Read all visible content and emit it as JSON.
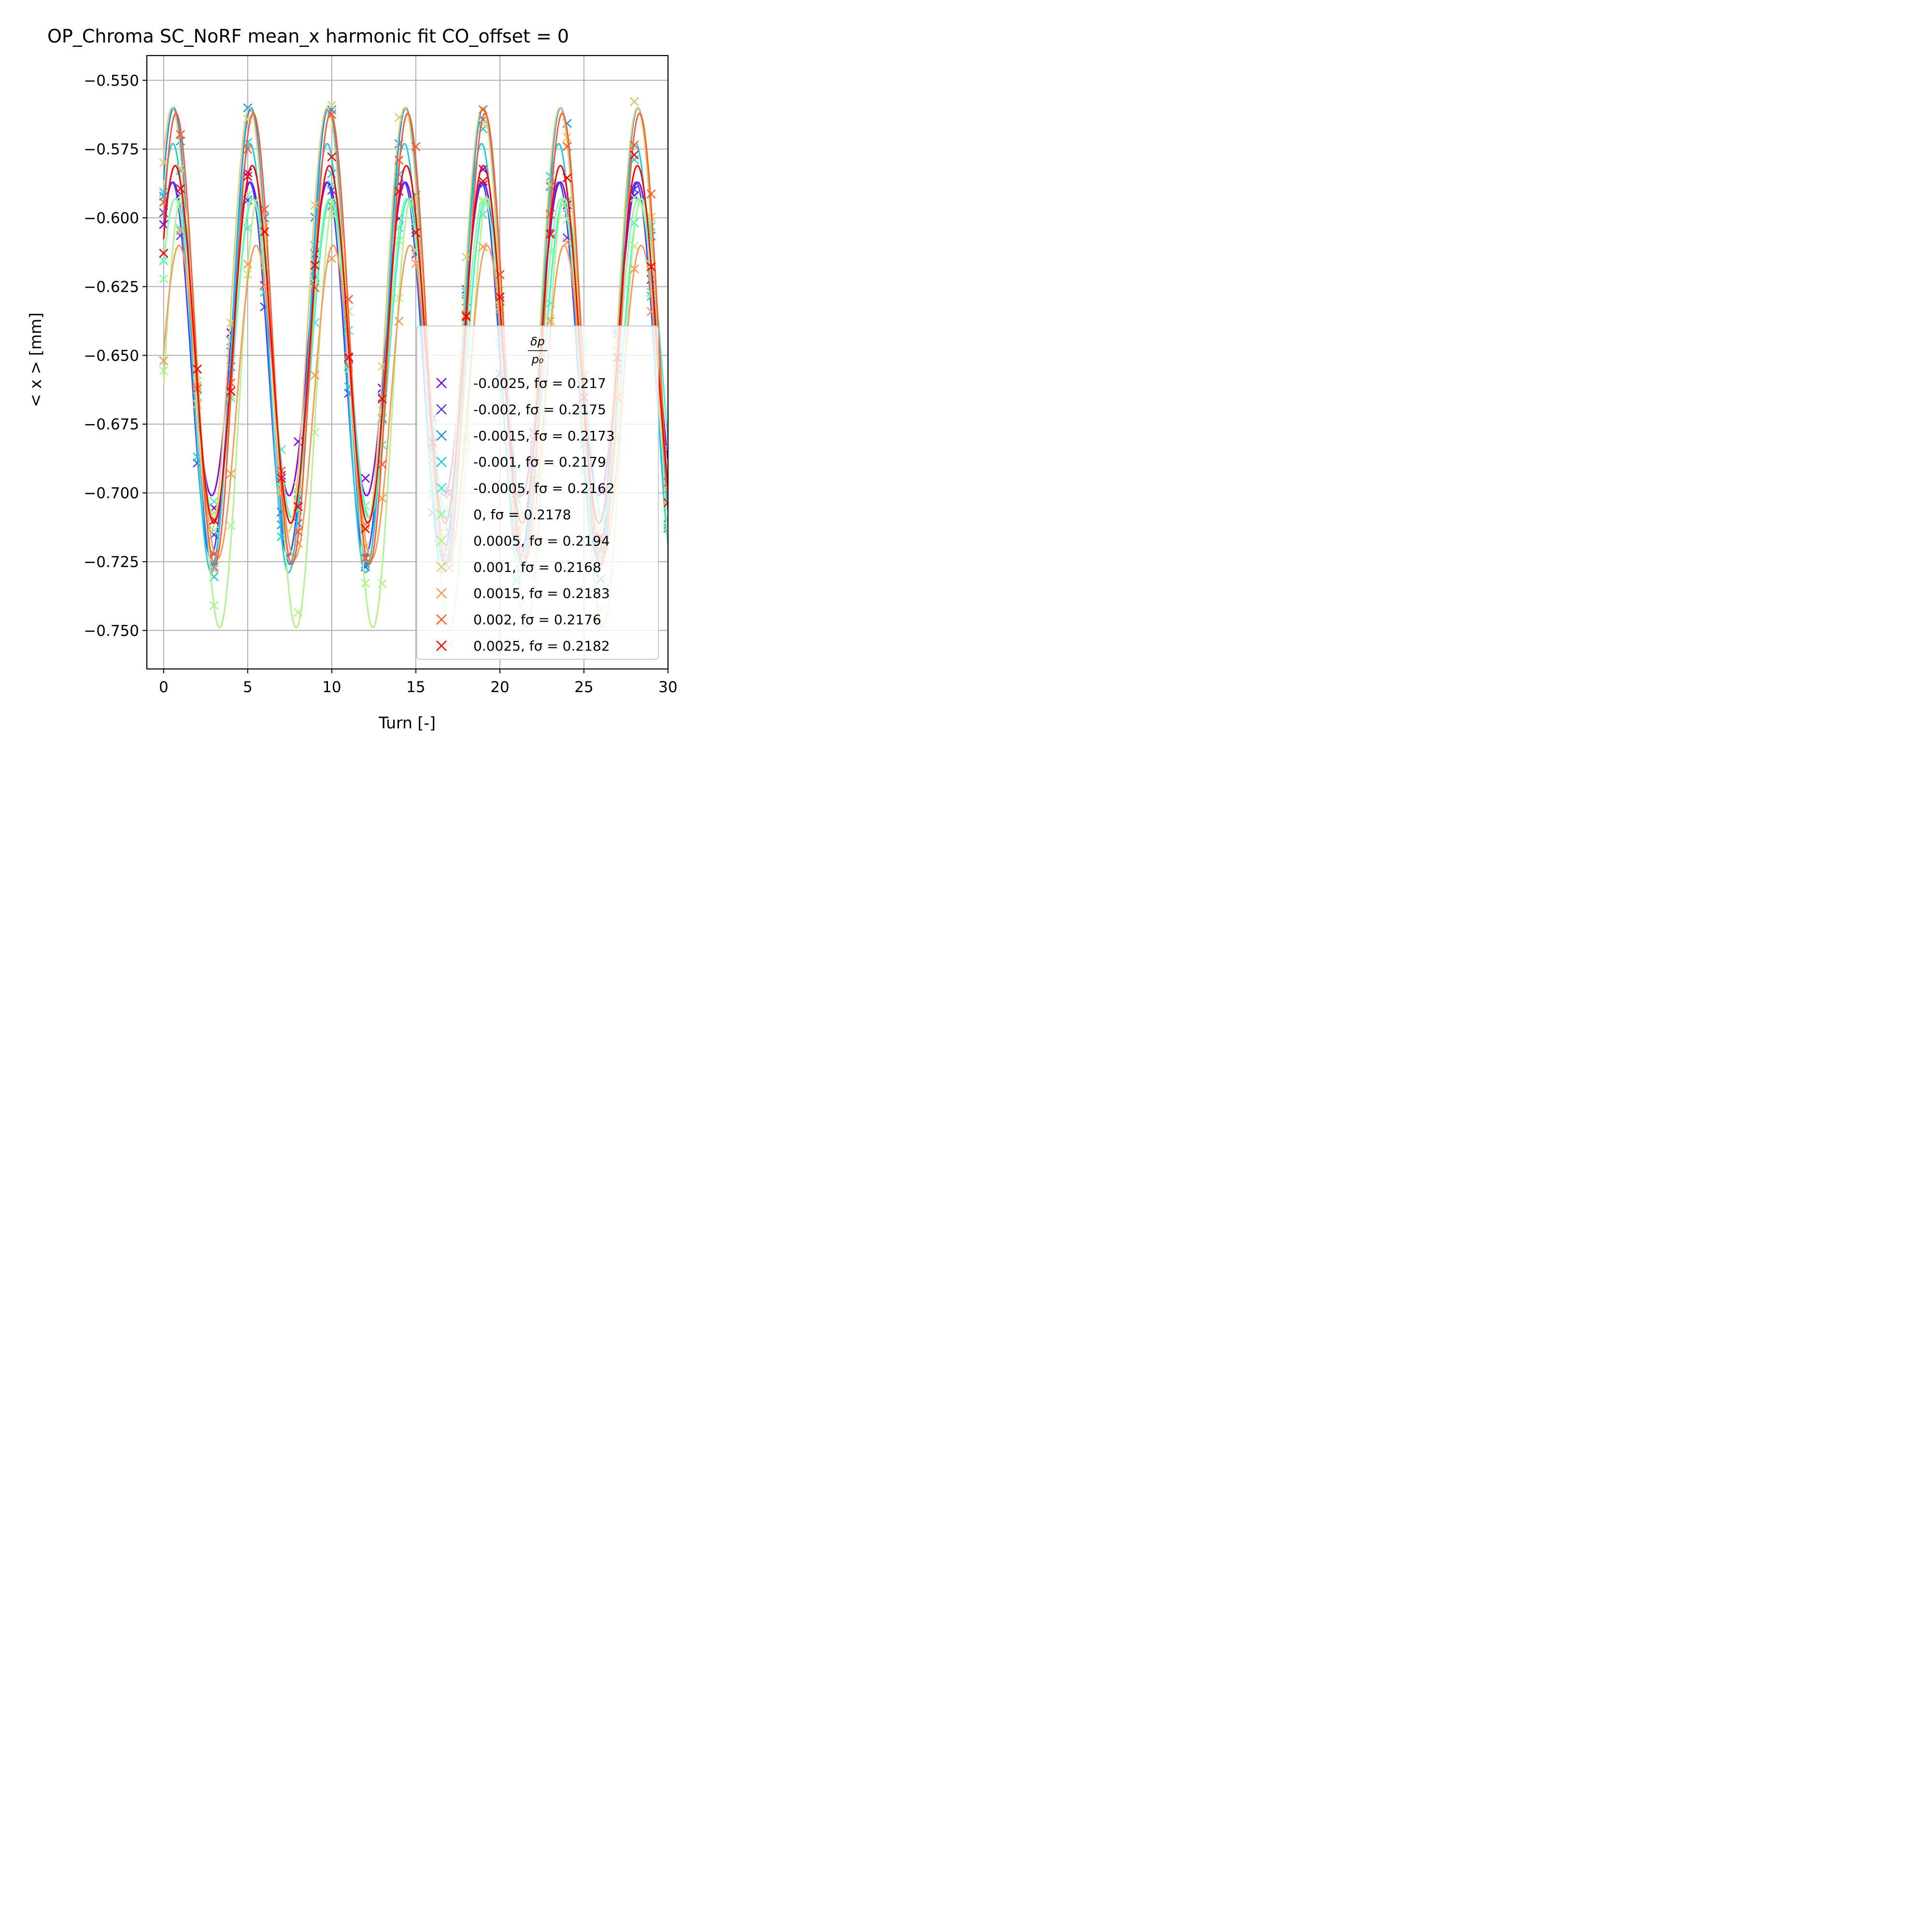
{
  "chart_data": {
    "type": "scatter",
    "title": "OP_Chroma SC_NoRF mean_x harmonic fit CO_offset = 0",
    "xlabel": "Turn [-]",
    "ylabel": "< x >  [mm]",
    "xlim": [
      -1,
      30
    ],
    "ylim": [
      -0.764,
      -0.541
    ],
    "xticks": [
      "0",
      "5",
      "10",
      "15",
      "20",
      "25",
      "30"
    ],
    "yticks": [
      "−0.550",
      "−0.575",
      "−0.600",
      "−0.625",
      "−0.650",
      "−0.675",
      "−0.700",
      "−0.725",
      "−0.750"
    ],
    "grid": true,
    "legend": {
      "placement": "lower-right",
      "title_num": "δp",
      "title_den": "p₀"
    },
    "series": [
      {
        "dp": "-0.0025",
        "label": "-0.0025, fσ = 0.217",
        "f": 0.217,
        "color": "#8000ff",
        "mean": -0.644,
        "amp": 0.057,
        "phase": 0.13
      },
      {
        "dp": "-0.002",
        "label": "-0.002, fσ = 0.2175",
        "f": 0.2175,
        "color": "#4842f8",
        "mean": -0.655,
        "amp": 0.068,
        "phase": 0.14
      },
      {
        "dp": "-0.0015",
        "label": "-0.0015, fσ = 0.2173",
        "f": 0.2173,
        "color": "#1996f3",
        "mean": -0.643,
        "amp": 0.083,
        "phase": 0.12
      },
      {
        "dp": "-0.001",
        "label": "-0.001, fσ = 0.2179",
        "f": 0.2179,
        "color": "#1acfe3",
        "mean": -0.651,
        "amp": 0.078,
        "phase": 0.13
      },
      {
        "dp": "-0.0005",
        "label": "-0.0005, fσ = 0.2162",
        "f": 0.2162,
        "color": "#3bf4c8",
        "mean": -0.651,
        "amp": 0.058,
        "phase": 0.1
      },
      {
        "dp": "0",
        "label": "0, fσ = 0.2178",
        "f": 0.2178,
        "color": "#81ffa2",
        "mean": -0.651,
        "amp": 0.058,
        "phase": 0.1
      },
      {
        "dp": "0.0005",
        "label": "0.0005, fσ = 0.2194",
        "f": 0.2194,
        "color": "#b0f38b",
        "mean": -0.671,
        "amp": 0.078,
        "phase": 0.02
      },
      {
        "dp": "0.001",
        "label": "0.001, fσ = 0.2168",
        "f": 0.2168,
        "color": "#e2cc6e",
        "mean": -0.637,
        "amp": 0.077,
        "phase": 0.14
      },
      {
        "dp": "0.0015",
        "label": "0.0015, fσ = 0.2183",
        "f": 0.2183,
        "color": "#ff9852",
        "mean": -0.667,
        "amp": 0.057,
        "phase": 0.05
      },
      {
        "dp": "0.002",
        "label": "0.002, fσ = 0.2176",
        "f": 0.2176,
        "color": "#ff5a2c",
        "mean": -0.644,
        "amp": 0.082,
        "phase": 0.09
      },
      {
        "dp": "0.0025",
        "label": "0.0025, fσ = 0.2182",
        "f": 0.2182,
        "color": "#ff0000",
        "mean": -0.646,
        "amp": 0.065,
        "phase": 0.1
      }
    ]
  }
}
